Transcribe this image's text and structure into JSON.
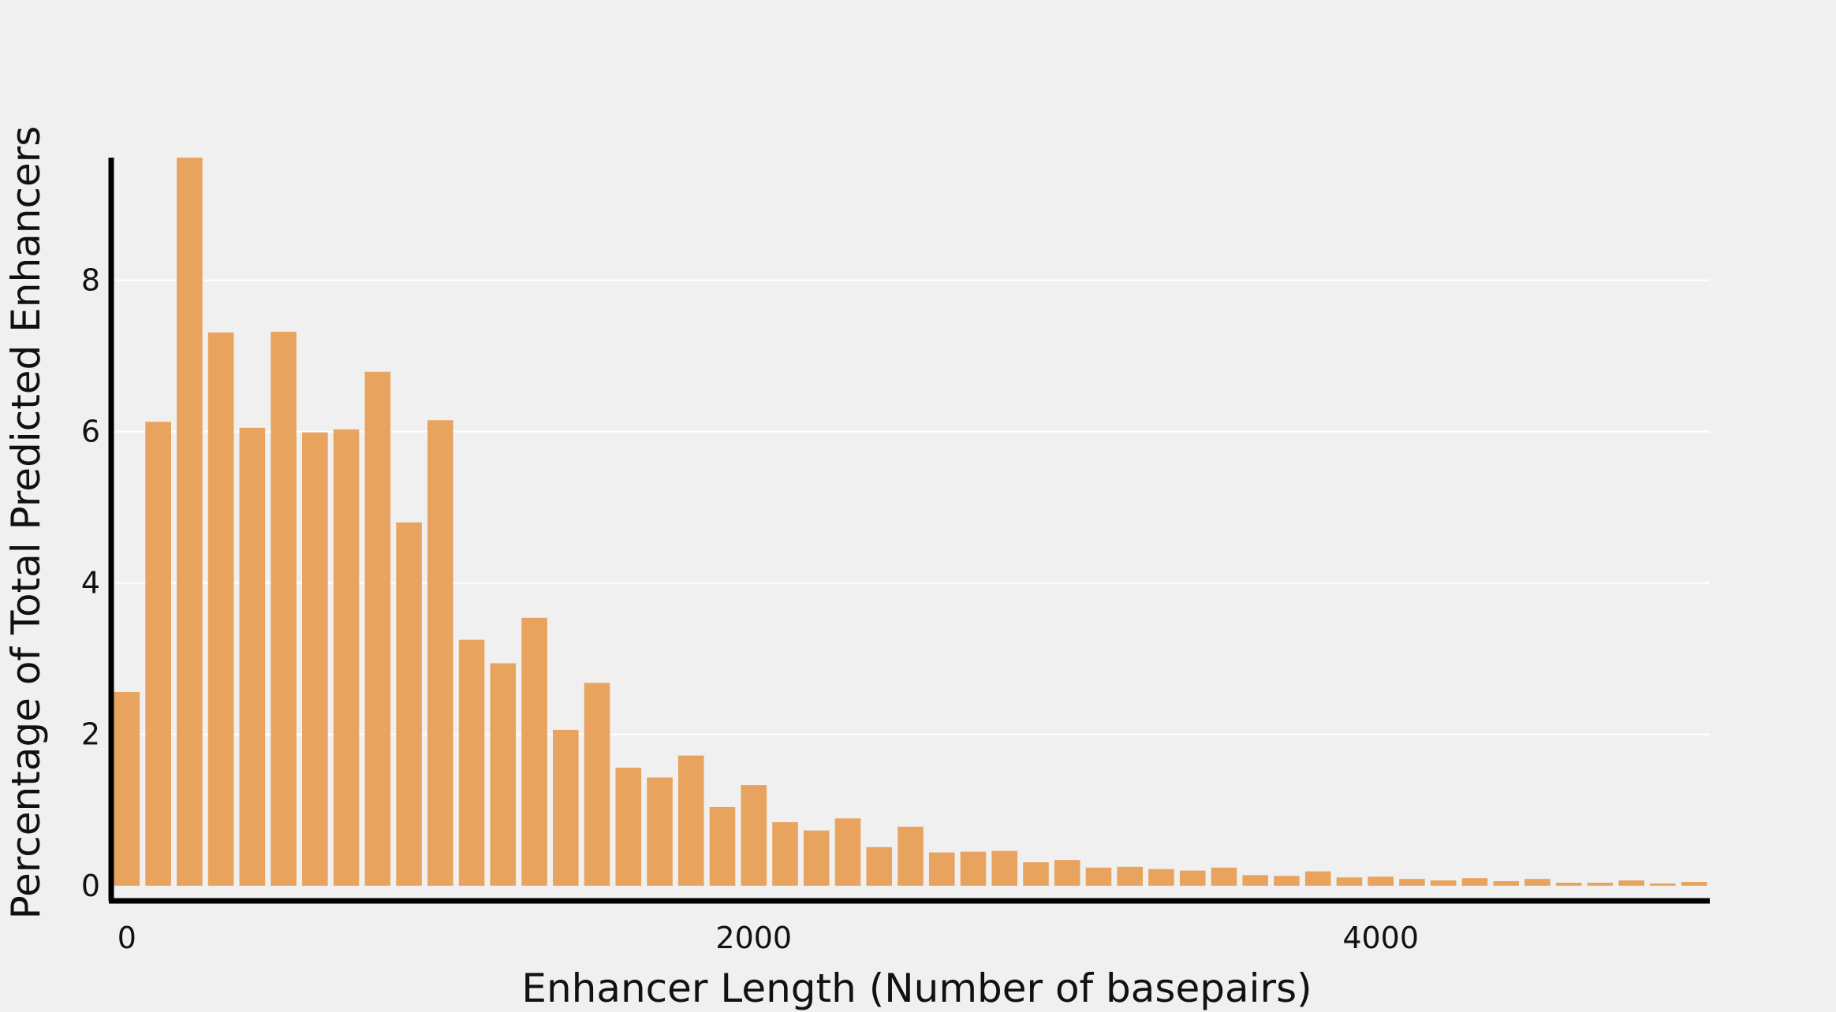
{
  "chart_data": {
    "type": "bar",
    "xlabel": "Enhancer Length (Number of basepairs)",
    "ylabel": "Percentage of Total Predicted Enhancers",
    "bin_width": 100,
    "bin_centers_start": 0,
    "values": [
      2.56,
      6.13,
      9.62,
      7.31,
      6.05,
      7.32,
      5.99,
      6.03,
      6.79,
      4.8,
      6.15,
      3.25,
      2.94,
      3.54,
      2.06,
      2.68,
      1.56,
      1.43,
      1.72,
      1.04,
      1.33,
      0.84,
      0.73,
      0.89,
      0.51,
      0.78,
      0.44,
      0.45,
      0.46,
      0.31,
      0.34,
      0.24,
      0.25,
      0.22,
      0.2,
      0.24,
      0.14,
      0.13,
      0.19,
      0.11,
      0.12,
      0.09,
      0.07,
      0.1,
      0.06,
      0.09,
      0.04,
      0.04,
      0.07,
      0.03,
      0.05
    ],
    "xlim": [
      -50,
      5050
    ],
    "ylim": [
      -0.2,
      9.62
    ],
    "xticks": [
      0,
      2000,
      4000
    ],
    "yticks": [
      0,
      2,
      4,
      6,
      8
    ],
    "grid": "horizontal",
    "bar_color": "#e8a45f"
  }
}
